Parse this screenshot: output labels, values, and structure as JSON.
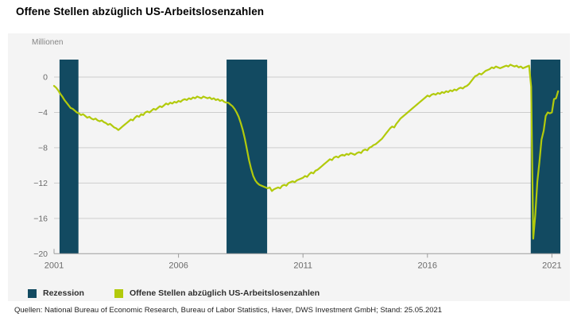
{
  "title": "Offene Stellen abzüglich US-Arbeitslosenzahlen",
  "source": "Quellen: National Bureau of Economic Research, Bureau of Labor Statistics, Haver, DWS Investment GmbH; Stand: 25.05.2021",
  "chart": {
    "colors": {
      "panel_background": "#f4f4f4",
      "recession": "#124a61",
      "line": "#b2ca0c",
      "grid": "#cdcdcd",
      "axis": "#9c9c9c",
      "tick_label": "#6b6b6b"
    },
    "legend": [
      {
        "label": "Rezession",
        "color_key": "recession"
      },
      {
        "label": "Offene Stellen abzüglich US-Arbeitslosenzahlen",
        "color_key": "line"
      }
    ]
  },
  "chart_data": {
    "type": "line",
    "title": "Offene Stellen abzüglich US-Arbeitslosenzahlen",
    "ylabel": "Millionen",
    "xlabel": "",
    "grid": true,
    "legend_position": "bottom",
    "ylim": [
      -20,
      2
    ],
    "xlim": [
      2001,
      2021.4
    ],
    "y_ticks": [
      0,
      -4,
      -8,
      -12,
      -16,
      -20
    ],
    "x_ticks": [
      2001,
      2006,
      2011,
      2016,
      2021
    ],
    "recession_name": "Rezession",
    "recession_periods": [
      {
        "from": 2001.22,
        "to": 2001.98
      },
      {
        "from": 2007.93,
        "to": 2009.56
      },
      {
        "from": 2020.15,
        "to": 2021.34
      }
    ],
    "series": [
      {
        "name": "Offene Stellen abzüglich US-Arbeitslosenzahlen",
        "unit": "Millionen",
        "x_start_year": 2001,
        "x_step_months": 1,
        "values": [
          -1.0,
          -1.2,
          -1.5,
          -1.9,
          -2.2,
          -2.6,
          -2.9,
          -3.2,
          -3.5,
          -3.6,
          -3.8,
          -4.0,
          -4.1,
          -4.3,
          -4.2,
          -4.4,
          -4.6,
          -4.5,
          -4.7,
          -4.8,
          -4.7,
          -4.9,
          -5.0,
          -4.9,
          -5.1,
          -5.2,
          -5.4,
          -5.3,
          -5.5,
          -5.7,
          -5.8,
          -6.0,
          -5.8,
          -5.6,
          -5.4,
          -5.2,
          -5.0,
          -4.8,
          -4.9,
          -4.6,
          -4.4,
          -4.5,
          -4.2,
          -4.3,
          -4.0,
          -3.9,
          -4.0,
          -3.8,
          -3.6,
          -3.7,
          -3.5,
          -3.3,
          -3.4,
          -3.2,
          -3.0,
          -3.1,
          -2.9,
          -3.0,
          -2.8,
          -2.9,
          -2.7,
          -2.8,
          -2.6,
          -2.5,
          -2.6,
          -2.4,
          -2.5,
          -2.3,
          -2.4,
          -2.2,
          -2.3,
          -2.4,
          -2.2,
          -2.3,
          -2.4,
          -2.3,
          -2.5,
          -2.4,
          -2.6,
          -2.5,
          -2.7,
          -2.6,
          -2.8,
          -2.9,
          -2.9,
          -3.1,
          -3.3,
          -3.6,
          -4.0,
          -4.5,
          -5.2,
          -6.0,
          -7.0,
          -8.2,
          -9.4,
          -10.4,
          -11.2,
          -11.7,
          -12.0,
          -12.2,
          -12.3,
          -12.4,
          -12.5,
          -12.6,
          -12.5,
          -12.9,
          -12.7,
          -12.6,
          -12.5,
          -12.6,
          -12.3,
          -12.2,
          -12.3,
          -12.0,
          -11.9,
          -11.8,
          -11.9,
          -11.7,
          -11.6,
          -11.5,
          -11.4,
          -11.2,
          -11.3,
          -11.0,
          -10.8,
          -10.9,
          -10.6,
          -10.5,
          -10.3,
          -10.1,
          -9.9,
          -9.7,
          -9.5,
          -9.3,
          -9.4,
          -9.1,
          -9.0,
          -9.1,
          -8.9,
          -8.8,
          -8.9,
          -8.7,
          -8.8,
          -8.6,
          -8.7,
          -8.8,
          -8.6,
          -8.5,
          -8.6,
          -8.3,
          -8.2,
          -8.3,
          -8.0,
          -7.9,
          -7.7,
          -7.6,
          -7.4,
          -7.2,
          -7.0,
          -6.7,
          -6.4,
          -6.1,
          -5.8,
          -5.6,
          -5.7,
          -5.3,
          -5.0,
          -4.7,
          -4.5,
          -4.3,
          -4.1,
          -3.9,
          -3.7,
          -3.5,
          -3.3,
          -3.1,
          -2.9,
          -2.7,
          -2.5,
          -2.3,
          -2.1,
          -2.2,
          -2.0,
          -1.9,
          -2.0,
          -1.8,
          -1.9,
          -1.7,
          -1.8,
          -1.6,
          -1.7,
          -1.5,
          -1.6,
          -1.4,
          -1.5,
          -1.3,
          -1.2,
          -1.3,
          -1.1,
          -1.0,
          -0.8,
          -0.5,
          -0.2,
          0.1,
          0.2,
          0.4,
          0.3,
          0.5,
          0.7,
          0.8,
          0.9,
          1.1,
          1.0,
          1.2,
          1.1,
          1.0,
          1.1,
          1.2,
          1.3,
          1.2,
          1.4,
          1.3,
          1.2,
          1.3,
          1.1,
          1.2,
          1.0,
          1.1,
          1.2,
          1.3,
          -1.1,
          -18.3,
          -15.6,
          -11.8,
          -9.6,
          -7.1,
          -6.1,
          -4.4,
          -4.0,
          -4.1,
          -4.0,
          -2.5,
          -2.4,
          -1.6
        ]
      }
    ]
  }
}
